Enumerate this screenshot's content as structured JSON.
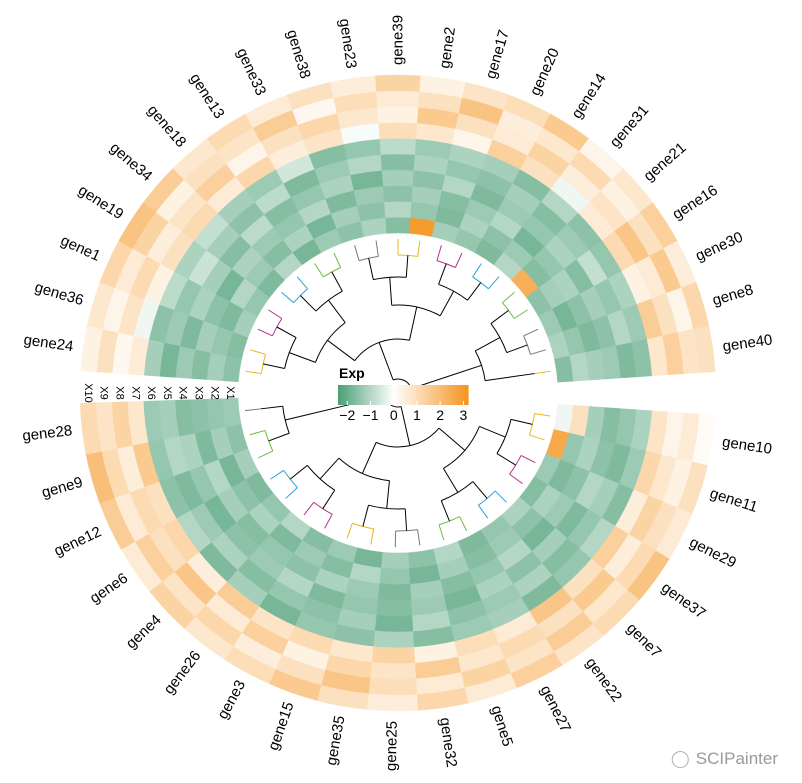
{
  "chart_data": {
    "type": "heatmap",
    "subtype": "circular-heatmap-with-dendrogram",
    "title": "",
    "legend": {
      "title": "Exp",
      "ticks": [
        -2,
        -1,
        0,
        1,
        2,
        3
      ],
      "range": [
        -2.4,
        3.2
      ],
      "colors": {
        "low": "#4a9e74",
        "mid": "#ffffff",
        "high": "#f5941f"
      },
      "placement": "center"
    },
    "tracks": [
      "X10",
      "X9",
      "X8",
      "X7",
      "X6",
      "X5",
      "X4",
      "X3",
      "X2",
      "X1"
    ],
    "sector_labels": [
      [
        "X10",
        "X9",
        "X8",
        "X7",
        "X6",
        "X5",
        "X4",
        "X3",
        "X2",
        "X1"
      ],
      [
        "X10",
        "X9",
        "X8",
        "X7",
        "X6",
        "X5",
        "X4",
        "X3",
        "X2",
        "X1"
      ]
    ],
    "sectors": [
      {
        "genes": [
          "gene24",
          "gene36",
          "gene1",
          "gene19",
          "gene34",
          "gene18",
          "gene13",
          "gene33",
          "gene38",
          "gene23",
          "gene39",
          "gene2",
          "gene17",
          "gene20",
          "gene14",
          "gene31",
          "gene21",
          "gene16",
          "gene30",
          "gene8",
          "gene40"
        ],
        "values": [
          [
            -1.5,
            -1.2,
            -1.6,
            -1.3,
            -1.8,
            -1.2,
            0.6,
            0.2,
            0.9,
            0.4
          ],
          [
            -1.6,
            -1.4,
            -1.2,
            -1.7,
            -1.3,
            -1.5,
            -0.2,
            0.8,
            0.3,
            0.7
          ],
          [
            -1.2,
            -1.7,
            -1.5,
            -1.1,
            -1.4,
            -0.9,
            0.4,
            1.1,
            0.6,
            1.2
          ],
          [
            -1.4,
            -1.0,
            -1.8,
            -1.2,
            -0.7,
            -1.1,
            0.9,
            0.5,
            1.3,
            1.8
          ],
          [
            -1.7,
            -1.3,
            -1.1,
            -1.6,
            -1.2,
            -0.8,
            1.1,
            0.8,
            0.4,
            1.5
          ],
          [
            -1.0,
            -1.6,
            -1.3,
            -0.9,
            -1.5,
            -1.2,
            0.6,
            1.4,
            0.9,
            0.7
          ],
          [
            -1.8,
            -1.1,
            -1.4,
            -1.6,
            -0.9,
            -1.3,
            1.2,
            0.3,
            0.8,
            1.1
          ],
          [
            -1.3,
            -1.8,
            -1.0,
            -1.4,
            -1.7,
            -0.6,
            0.5,
            0.9,
            1.5,
            0.6
          ],
          [
            -1.5,
            -1.2,
            -1.7,
            -1.1,
            -1.3,
            -1.6,
            0.8,
            1.2,
            0.2,
            0.9
          ],
          [
            -1.1,
            -1.5,
            -1.3,
            -1.8,
            -1.0,
            -1.4,
            -0.1,
            0.7,
            1.0,
            0.5
          ],
          [
            -1.6,
            -1.0,
            -1.5,
            -1.2,
            -1.6,
            -0.9,
            1.0,
            0.4,
            0.6,
            1.3
          ],
          [
            3.0,
            -1.4,
            -1.2,
            -1.5,
            -1.1,
            -1.3,
            0.7,
            1.6,
            0.9,
            0.4
          ],
          [
            -1.2,
            -1.7,
            -1.6,
            -1.0,
            -1.4,
            -1.1,
            0.3,
            0.9,
            1.8,
            0.8
          ],
          [
            -1.4,
            -1.1,
            -1.3,
            -1.7,
            -1.5,
            -1.2,
            1.4,
            0.6,
            0.5,
            1.0
          ],
          [
            -1.7,
            -1.5,
            -1.0,
            -1.3,
            -1.2,
            -1.6,
            0.9,
            1.3,
            0.7,
            1.6
          ],
          [
            -1.0,
            -1.3,
            -1.8,
            -1.4,
            -1.6,
            -1.0,
            -0.2,
            0.5,
            1.1,
            0.3
          ],
          [
            2.4,
            -1.6,
            -1.4,
            -1.1,
            -1.3,
            -1.5,
            0.6,
            0.8,
            0.4,
            0.7
          ],
          [
            -1.5,
            -1.2,
            -1.1,
            -1.6,
            -0.8,
            -1.4,
            1.1,
            1.7,
            0.9,
            1.4
          ],
          [
            -1.3,
            -1.8,
            -1.5,
            -1.2,
            -1.4,
            -1.1,
            0.4,
            0.6,
            1.6,
            0.5
          ],
          [
            -1.1,
            -1.4,
            -1.7,
            -1.5,
            -1.0,
            -1.3,
            1.5,
            0.9,
            0.3,
            1.2
          ],
          [
            -1.6,
            -1.0,
            -1.2,
            -1.3,
            -1.7,
            -1.5,
            0.7,
            1.4,
            0.8,
            0.9
          ]
        ]
      },
      {
        "genes": [
          "gene10",
          "gene11",
          "gene29",
          "gene37",
          "gene7",
          "gene22",
          "gene27",
          "gene5",
          "gene32",
          "gene25",
          "gene35",
          "gene15",
          "gene3",
          "gene26",
          "gene4",
          "gene6",
          "gene12",
          "gene9",
          "gene28"
        ],
        "values": [
          [
            -0.2,
            0.9,
            -1.2,
            -1.6,
            -1.4,
            -1.1,
            0.8,
            0.3,
            0.6,
            0.1
          ],
          [
            2.6,
            -1.4,
            -1.1,
            -1.5,
            -1.7,
            -1.3,
            1.2,
            0.7,
            0.4,
            0.9
          ],
          [
            -1.3,
            -1.7,
            -1.5,
            -1.0,
            -1.2,
            -1.6,
            0.5,
            1.3,
            0.9,
            0.6
          ],
          [
            -1.6,
            -1.1,
            -1.3,
            -1.7,
            -1.4,
            -1.0,
            1.4,
            0.5,
            1.1,
            1.8
          ],
          [
            -1.1,
            -1.5,
            -1.8,
            -1.2,
            -1.6,
            -1.4,
            0.9,
            1.6,
            0.7,
            1.1
          ],
          [
            -1.4,
            -1.3,
            -1.0,
            -1.5,
            -1.1,
            -1.7,
            1.7,
            0.9,
            1.5,
            0.8
          ],
          [
            -1.7,
            -1.6,
            -1.4,
            -1.1,
            -1.3,
            -1.2,
            0.6,
            1.1,
            0.8,
            1.4
          ],
          [
            -1.0,
            -1.2,
            -1.6,
            -1.8,
            -1.5,
            -1.3,
            1.0,
            0.7,
            1.3,
            0.6
          ],
          [
            -1.5,
            -1.8,
            -1.2,
            -1.3,
            -1.0,
            -1.6,
            0.4,
            1.5,
            0.6,
            1.2
          ],
          [
            -1.2,
            -1.4,
            -1.7,
            -1.6,
            -1.8,
            -1.1,
            1.3,
            0.8,
            1.0,
            0.5
          ],
          [
            -1.8,
            -1.0,
            -1.3,
            -1.4,
            -1.2,
            -1.5,
            0.7,
            1.2,
            1.7,
            0.9
          ],
          [
            -1.3,
            -1.6,
            -1.1,
            -1.7,
            -1.5,
            -1.4,
            1.1,
            0.4,
            0.9,
            1.6
          ],
          [
            -1.6,
            -1.3,
            -1.5,
            -1.0,
            -1.4,
            -1.8,
            0.8,
            1.4,
            0.5,
            1.0
          ],
          [
            -1.0,
            -1.7,
            -1.4,
            -1.3,
            -1.6,
            -1.2,
            1.5,
            0.6,
            1.2,
            0.7
          ],
          [
            -1.4,
            -1.1,
            -1.6,
            -1.5,
            -1.1,
            -1.7,
            0.5,
            1.7,
            0.8,
            1.3
          ],
          [
            -1.7,
            -1.5,
            -1.2,
            -1.8,
            -1.3,
            -1.0,
            1.2,
            0.9,
            1.4,
            0.6
          ],
          [
            -1.2,
            -1.8,
            -1.0,
            -1.4,
            -1.7,
            -1.5,
            0.9,
            1.1,
            0.6,
            1.5
          ],
          [
            -1.5,
            -1.2,
            -1.7,
            -1.1,
            -1.0,
            -1.4,
            1.6,
            0.5,
            1.1,
            1.9
          ],
          [
            -1.3,
            -1.4,
            -1.5,
            -1.6,
            -1.2,
            -1.3,
            0.7,
            1.3,
            0.8,
            1.1
          ]
        ]
      }
    ],
    "dendrogram_colors": [
      "#e7b81a",
      "#b5318c",
      "#2c9fd6",
      "#6bbd45",
      "#777777"
    ]
  },
  "watermark": {
    "icon": "wechat-icon",
    "text": "SCIPainter"
  }
}
